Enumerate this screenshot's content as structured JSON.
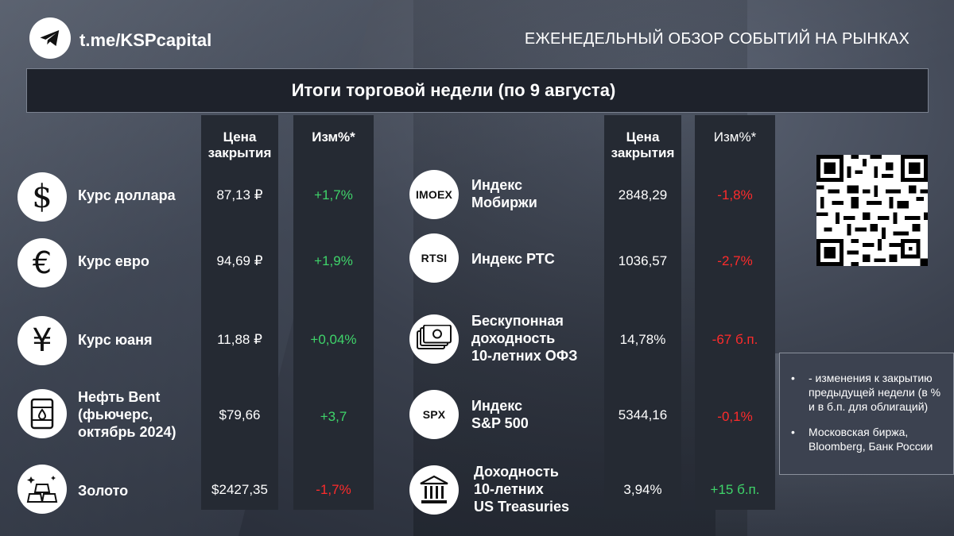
{
  "header": {
    "brand": "t.me/KSPcapital",
    "subtitle": "ЕЖЕНЕДЕЛЬНЫЙ ОБЗОР СОБЫТИЙ НА РЫНКАХ",
    "title": "Итоги торговой недели (по 9 августа)"
  },
  "columns": {
    "price_line1": "Цена",
    "price_line2": "закрытия",
    "change": "Изм%*"
  },
  "left_rows": [
    {
      "icon": "dollar-icon",
      "label": "Курс доллара",
      "price": "87,13 ₽",
      "change": "+1,7%",
      "dir": "pos"
    },
    {
      "icon": "euro-icon",
      "label": "Курс евро",
      "price": "94,69 ₽",
      "change": "+1,9%",
      "dir": "pos"
    },
    {
      "icon": "yuan-icon",
      "label": "Курс юаня",
      "price": "11,88 ₽",
      "change": "+0,04%",
      "dir": "pos"
    },
    {
      "icon": "oil-barrel-icon",
      "label_lines": [
        "Нефть Bent",
        "(фьючерс,",
        "октябрь 2024)"
      ],
      "price": "$79,66",
      "change": "+3,7",
      "dir": "pos"
    },
    {
      "icon": "gold-bars-icon",
      "label": "Золото",
      "price": "$2427,35",
      "change": "-1,7%",
      "dir": "neg"
    }
  ],
  "right_rows": [
    {
      "icon_text": "IMOEX",
      "label_lines": [
        "Индекс",
        "Мобиржи"
      ],
      "price": "2848,29",
      "change": "-1,8%",
      "dir": "neg"
    },
    {
      "icon_text": "RTSI",
      "label": "Индекс РТС",
      "price": "1036,57",
      "change": "-2,7%",
      "dir": "neg"
    },
    {
      "icon": "money-icon",
      "label_lines": [
        "Бескупонная",
        "доходность",
        "10-летних ОФЗ"
      ],
      "price": "14,78%",
      "change": "-67 б.п.",
      "dir": "neg"
    },
    {
      "icon_text": "SPX",
      "label_lines": [
        "Индекс",
        "S&P 500"
      ],
      "price": "5344,16",
      "change": "-0,1%",
      "dir": "neg"
    },
    {
      "icon": "bank-icon",
      "label_lines": [
        "Доходность",
        "10-летних",
        "US Treasuries"
      ],
      "price": "3,94%",
      "change": "+15 б.п.",
      "dir": "pos"
    }
  ],
  "notes": [
    "- изменения  к закрытию предыдущей недели (в % и в б.п. для облигаций)",
    "Московская биржа, Bloomberg, Банк России"
  ],
  "colors": {
    "positive": "#3fd46a",
    "negative": "#ff2b2b",
    "panel": "#252a33"
  }
}
